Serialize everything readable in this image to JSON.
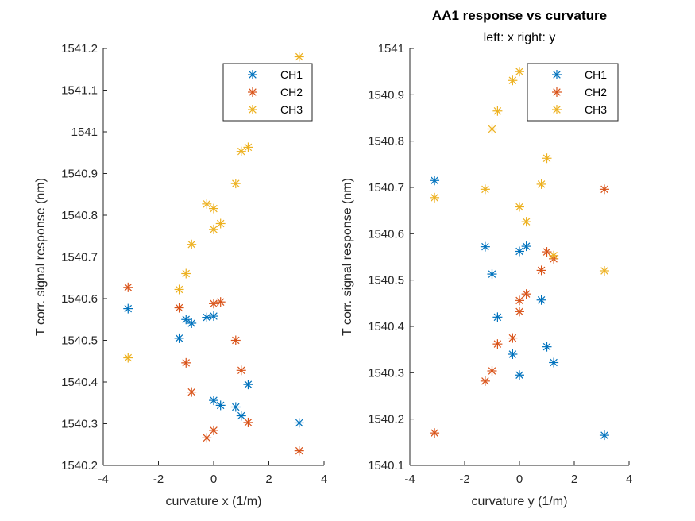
{
  "figure": {
    "title": "AA1 response vs curvature",
    "subtitle": "left: x  right: y"
  },
  "chart_data": [
    {
      "type": "scatter",
      "xlabel": "curvature x (1/m)",
      "ylabel": "T corr. signal response (nm)",
      "xlim": [
        -4,
        4
      ],
      "ylim": [
        1540.2,
        1541.2
      ],
      "xticks": [
        "-4",
        "-2",
        "0",
        "2",
        "4"
      ],
      "yticks": [
        "1540.2",
        "1540.3",
        "1540.4",
        "1540.5",
        "1540.6",
        "1540.7",
        "1540.8",
        "1540.9",
        "1541",
        "1541.1",
        "1541.2"
      ],
      "grid": false,
      "legend_position": "top-right",
      "series": [
        {
          "name": "CH1",
          "color": "#0072BD",
          "points": [
            [
              -3.1,
              1540.576
            ],
            [
              -1.25,
              1540.505
            ],
            [
              -1.0,
              1540.55
            ],
            [
              -0.8,
              1540.541
            ],
            [
              -0.25,
              1540.555
            ],
            [
              0.0,
              1540.558
            ],
            [
              0.0,
              1540.356
            ],
            [
              0.25,
              1540.344
            ],
            [
              0.8,
              1540.34
            ],
            [
              1.0,
              1540.319
            ],
            [
              1.25,
              1540.394
            ],
            [
              3.1,
              1540.302
            ]
          ]
        },
        {
          "name": "CH2",
          "color": "#D95319",
          "points": [
            [
              -3.1,
              1540.627
            ],
            [
              -1.25,
              1540.578
            ],
            [
              -1.0,
              1540.446
            ],
            [
              -0.8,
              1540.376
            ],
            [
              -0.25,
              1540.266
            ],
            [
              0.0,
              1540.284
            ],
            [
              0.0,
              1540.588
            ],
            [
              0.25,
              1540.592
            ],
            [
              0.8,
              1540.5
            ],
            [
              1.0,
              1540.428
            ],
            [
              1.25,
              1540.303
            ],
            [
              3.1,
              1540.235
            ]
          ]
        },
        {
          "name": "CH3",
          "color": "#EDB120",
          "points": [
            [
              -3.1,
              1540.458
            ],
            [
              -1.25,
              1540.622
            ],
            [
              -1.0,
              1540.66
            ],
            [
              -0.8,
              1540.73
            ],
            [
              -0.25,
              1540.827
            ],
            [
              0.0,
              1540.816
            ],
            [
              0.0,
              1540.766
            ],
            [
              0.25,
              1540.78
            ],
            [
              0.8,
              1540.876
            ],
            [
              1.0,
              1540.953
            ],
            [
              1.25,
              1540.963
            ],
            [
              3.1,
              1541.18
            ]
          ]
        }
      ]
    },
    {
      "type": "scatter",
      "xlabel": "curvature y (1/m)",
      "ylabel": "T corr. signal response (nm)",
      "xlim": [
        -4,
        4
      ],
      "ylim": [
        1540.1,
        1541.0
      ],
      "xticks": [
        "-4",
        "-2",
        "0",
        "2",
        "4"
      ],
      "yticks": [
        "1540.1",
        "1540.2",
        "1540.3",
        "1540.4",
        "1540.5",
        "1540.6",
        "1540.7",
        "1540.8",
        "1540.9",
        "1541"
      ],
      "grid": false,
      "legend_position": "top-right",
      "series": [
        {
          "name": "CH1",
          "color": "#0072BD",
          "points": [
            [
              -3.1,
              1540.715
            ],
            [
              -1.25,
              1540.572
            ],
            [
              -1.0,
              1540.513
            ],
            [
              -0.8,
              1540.42
            ],
            [
              -0.25,
              1540.34
            ],
            [
              0.0,
              1540.295
            ],
            [
              0.0,
              1540.562
            ],
            [
              0.25,
              1540.573
            ],
            [
              0.8,
              1540.457
            ],
            [
              1.0,
              1540.356
            ],
            [
              1.25,
              1540.322
            ],
            [
              3.1,
              1540.165
            ]
          ]
        },
        {
          "name": "CH2",
          "color": "#D95319",
          "points": [
            [
              -3.1,
              1540.17
            ],
            [
              -1.25,
              1540.282
            ],
            [
              -1.0,
              1540.304
            ],
            [
              -0.8,
              1540.362
            ],
            [
              -0.25,
              1540.375
            ],
            [
              0.0,
              1540.432
            ],
            [
              0.0,
              1540.456
            ],
            [
              0.25,
              1540.47
            ],
            [
              0.8,
              1540.521
            ],
            [
              1.0,
              1540.561
            ],
            [
              1.25,
              1540.546
            ],
            [
              3.1,
              1540.696
            ]
          ]
        },
        {
          "name": "CH3",
          "color": "#EDB120",
          "points": [
            [
              -3.1,
              1540.678
            ],
            [
              -1.25,
              1540.696
            ],
            [
              -1.0,
              1540.826
            ],
            [
              -0.8,
              1540.865
            ],
            [
              -0.25,
              1540.931
            ],
            [
              0.0,
              1540.95
            ],
            [
              0.0,
              1540.658
            ],
            [
              0.25,
              1540.626
            ],
            [
              0.8,
              1540.707
            ],
            [
              1.0,
              1540.763
            ],
            [
              1.25,
              1540.553
            ],
            [
              3.1,
              1540.52
            ]
          ]
        }
      ]
    }
  ]
}
